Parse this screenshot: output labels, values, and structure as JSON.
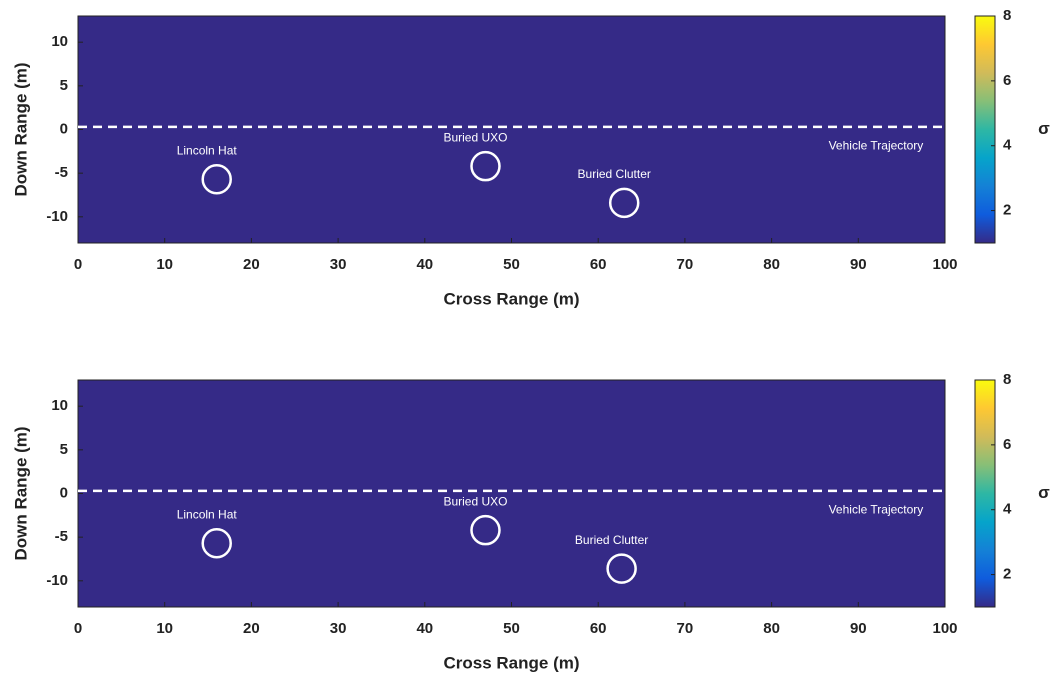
{
  "chart_data": [
    {
      "type": "heatmap",
      "xlabel": "Cross Range (m)",
      "ylabel": "Down Range (m)",
      "xlim": [
        0,
        100
      ],
      "ylim": [
        -13,
        13
      ],
      "xticks": [
        0,
        10,
        20,
        30,
        40,
        50,
        60,
        70,
        80,
        90,
        100
      ],
      "yticks": [
        -10,
        -5,
        0,
        5,
        10
      ],
      "background": "#352a87",
      "annotations": [
        {
          "text": "Lincoln Hat",
          "x": 16,
          "y": -5.7
        },
        {
          "text": "Buried UXO",
          "x": 47,
          "y": -4.2
        },
        {
          "text": "Buried Clutter",
          "x": 63,
          "y": -8.4
        }
      ],
      "trajectory": {
        "y": 0.3,
        "label": "Vehicle Trajectory",
        "label_x": 97.5,
        "label_y": -1.9
      },
      "colorbar": {
        "label": "σ",
        "lim": [
          1,
          8
        ],
        "ticks": [
          2,
          4,
          6,
          8
        ],
        "colors": [
          "#352a87",
          "#0f5cdd",
          "#1481d6",
          "#06a4ca",
          "#2eb7a4",
          "#87bf77",
          "#d1bb59",
          "#fec832",
          "#f9fb0e"
        ]
      }
    },
    {
      "type": "heatmap",
      "xlabel": "Cross Range (m)",
      "ylabel": "Down Range (m)",
      "xlim": [
        0,
        100
      ],
      "ylim": [
        -13,
        13
      ],
      "xticks": [
        0,
        10,
        20,
        30,
        40,
        50,
        60,
        70,
        80,
        90,
        100
      ],
      "yticks": [
        -10,
        -5,
        0,
        5,
        10
      ],
      "background": "#352a87",
      "annotations": [
        {
          "text": "Lincoln Hat",
          "x": 16,
          "y": -5.7
        },
        {
          "text": "Buried UXO",
          "x": 47,
          "y": -4.2
        },
        {
          "text": "Buried Clutter",
          "x": 62.7,
          "y": -8.6
        }
      ],
      "trajectory": {
        "y": 0.3,
        "label": "Vehicle Trajectory",
        "label_x": 97.5,
        "label_y": -1.9
      },
      "colorbar": {
        "label": "σ",
        "lim": [
          1,
          8
        ],
        "ticks": [
          2,
          4,
          6,
          8
        ],
        "colors": [
          "#352a87",
          "#0f5cdd",
          "#1481d6",
          "#06a4ca",
          "#2eb7a4",
          "#87bf77",
          "#d1bb59",
          "#fec832",
          "#f9fb0e"
        ]
      }
    }
  ]
}
